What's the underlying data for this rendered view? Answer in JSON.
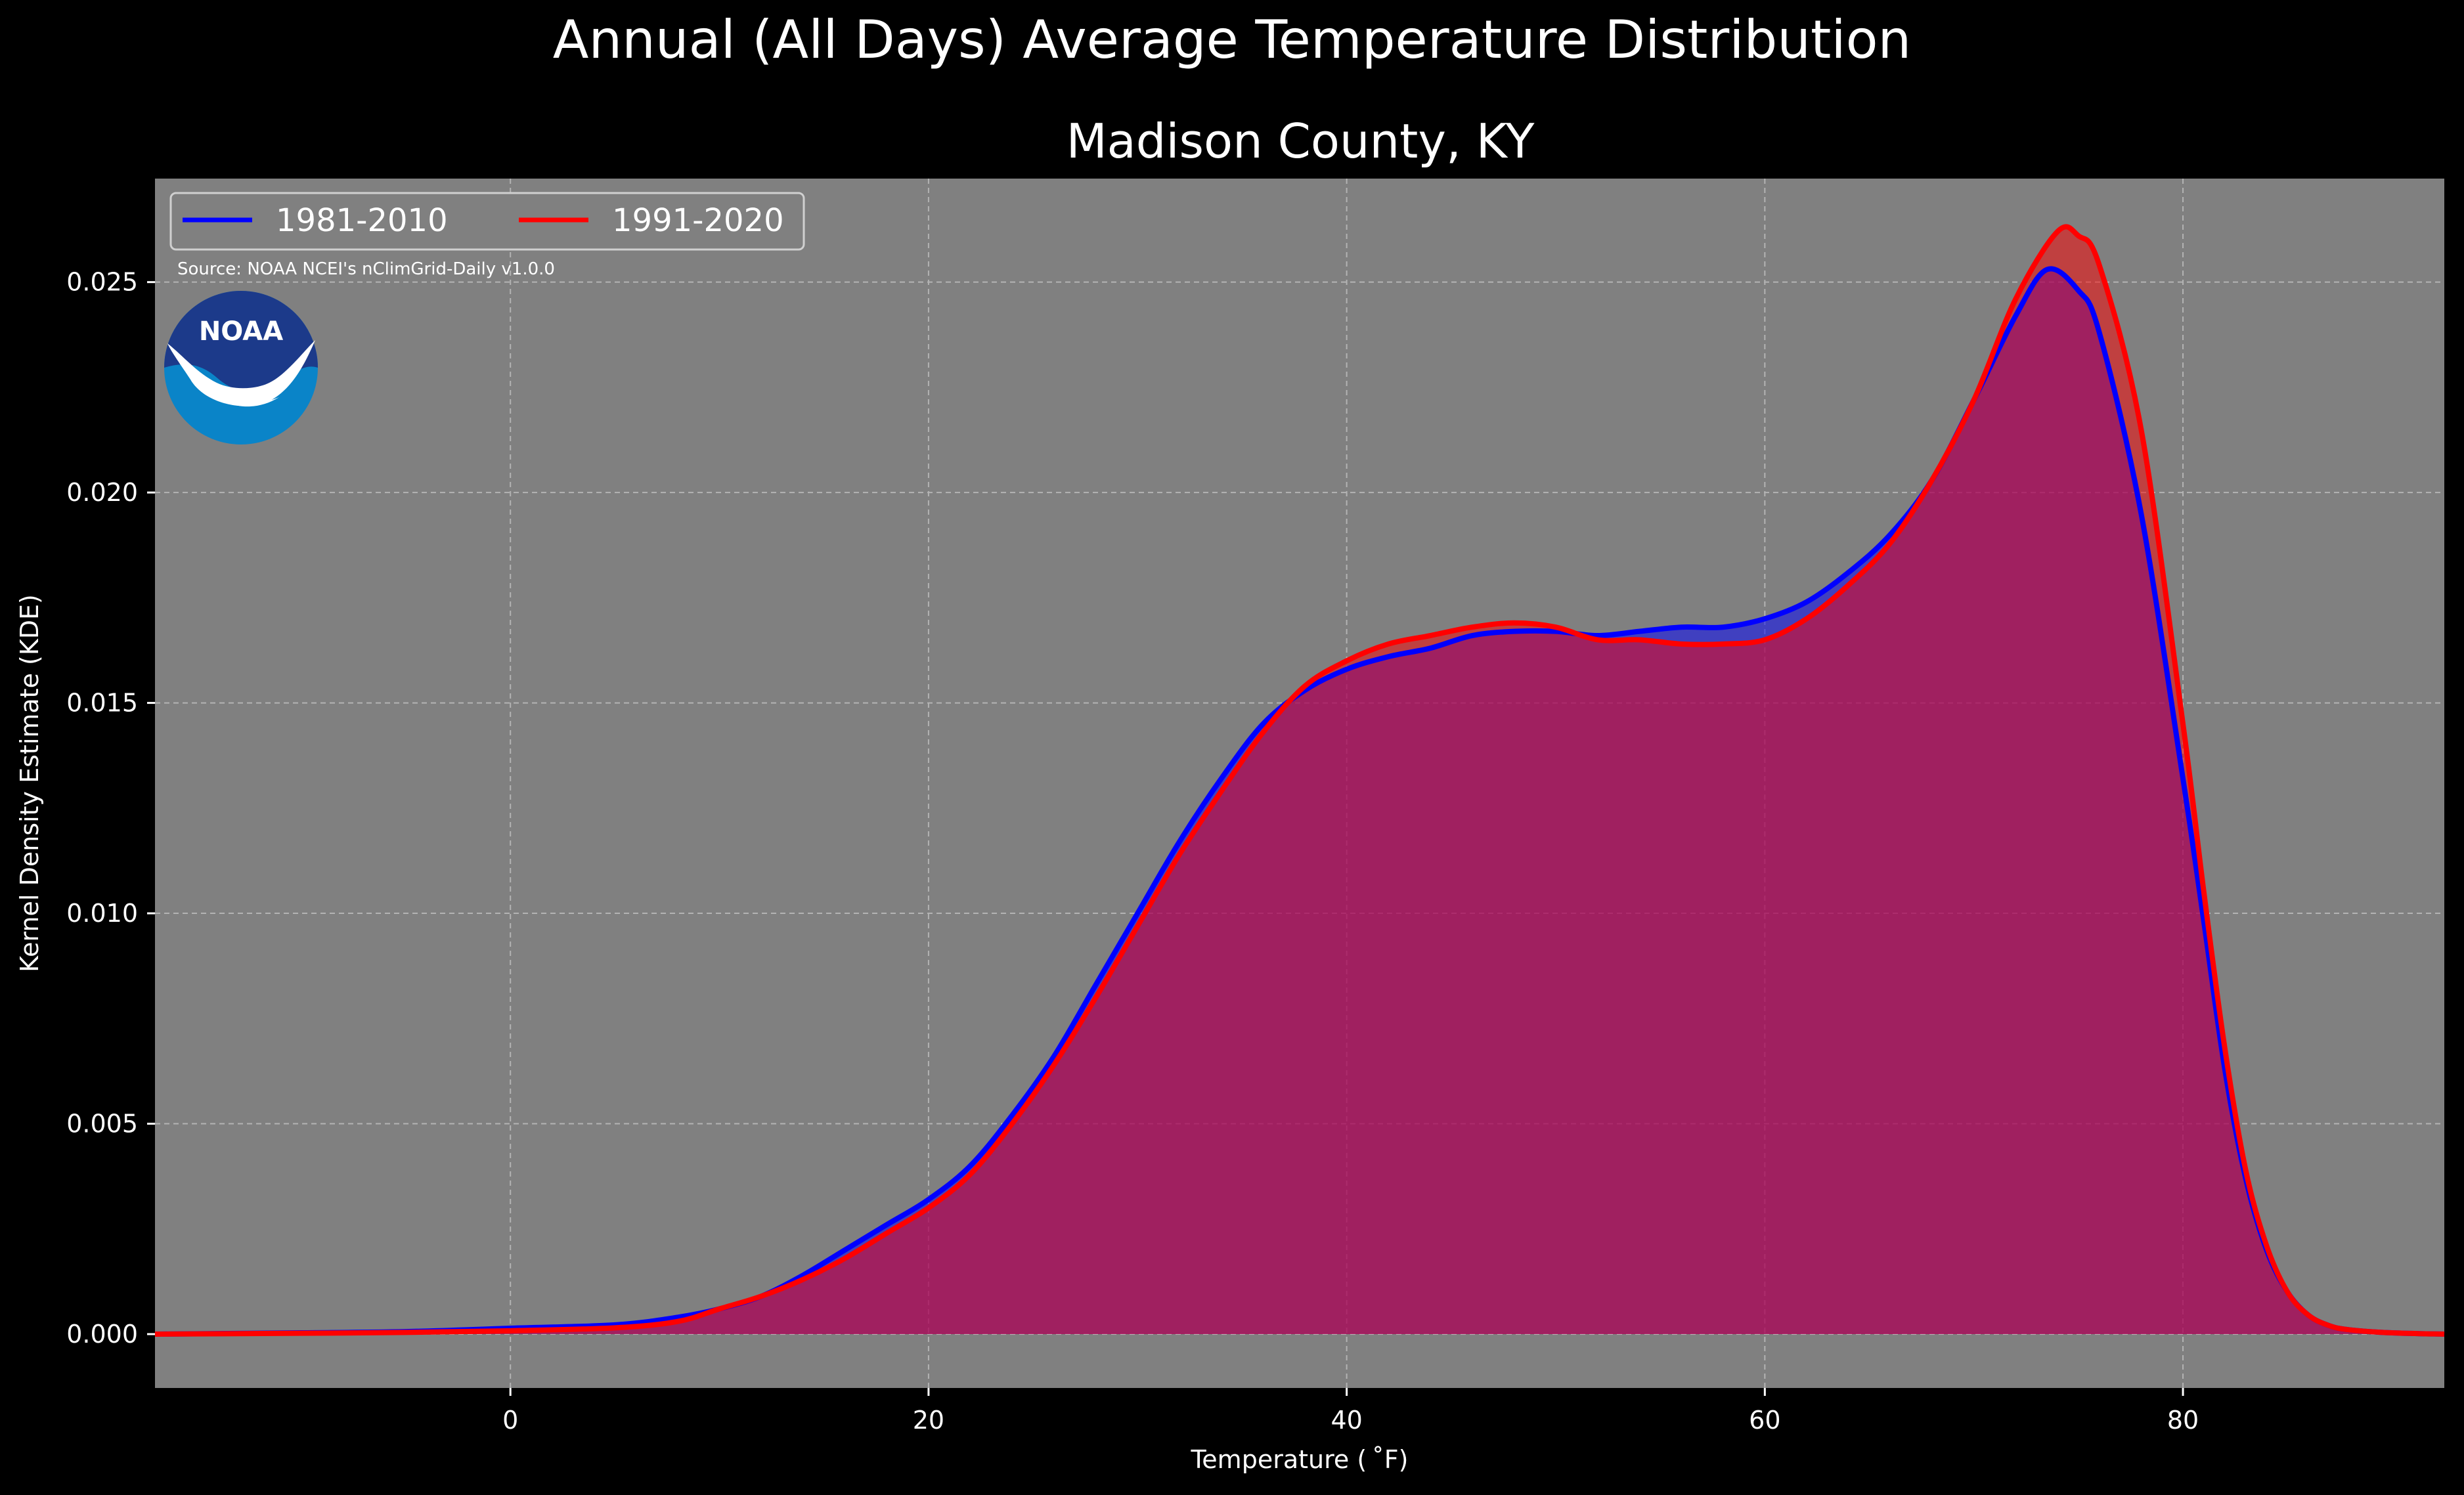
{
  "chart_data": {
    "type": "area",
    "suptitle": "Annual (All Days) Average Temperature Distribution",
    "title": "Madison County, KY",
    "xlabel": "Temperature ( ˚F)",
    "ylabel": "Kernel Density Estimate (KDE)",
    "xlim": [
      -17,
      92.5
    ],
    "ylim": [
      -0.00128,
      0.02746
    ],
    "xticks": [
      0,
      20,
      40,
      60,
      80
    ],
    "yticks": [
      0.0,
      0.005,
      0.01,
      0.015,
      0.02,
      0.025
    ],
    "ytick_labels": [
      "0.000",
      "0.005",
      "0.010",
      "0.015",
      "0.020",
      "0.025"
    ],
    "grid": true,
    "legend": {
      "placement": "top-left",
      "columns": 2
    },
    "source_note": "Source: NOAA NCEI's nClimGrid-Daily v1.0.0",
    "logo_text": "NOAA",
    "colors": {
      "figure_bg": "#000000",
      "axes_bg": "#808080",
      "grid": "#b3b3b3",
      "text": "#ffffff"
    },
    "series": [
      {
        "name": "1981-2010",
        "color": "#0000ff",
        "fill": "rgba(0,0,255,0.5)",
        "points": [
          [
            -17,
            0.0
          ],
          [
            -10,
            3e-05
          ],
          [
            -5,
            6e-05
          ],
          [
            0,
            0.00014
          ],
          [
            5,
            0.00022
          ],
          [
            8,
            0.0004
          ],
          [
            10,
            0.0006
          ],
          [
            12,
            0.0009
          ],
          [
            14,
            0.0014
          ],
          [
            16,
            0.002
          ],
          [
            18,
            0.0026
          ],
          [
            20,
            0.0032
          ],
          [
            22,
            0.004
          ],
          [
            24,
            0.0052
          ],
          [
            26,
            0.0066
          ],
          [
            28,
            0.0083
          ],
          [
            30,
            0.01
          ],
          [
            32,
            0.0117
          ],
          [
            34,
            0.0132
          ],
          [
            36,
            0.0145
          ],
          [
            38,
            0.0153
          ],
          [
            40,
            0.0158
          ],
          [
            42,
            0.0161
          ],
          [
            44,
            0.0163
          ],
          [
            46,
            0.0166
          ],
          [
            48,
            0.0167
          ],
          [
            50,
            0.0167
          ],
          [
            52,
            0.0166
          ],
          [
            54,
            0.0167
          ],
          [
            56,
            0.0168
          ],
          [
            58,
            0.0168
          ],
          [
            60,
            0.017
          ],
          [
            62,
            0.0174
          ],
          [
            64,
            0.0181
          ],
          [
            66,
            0.019
          ],
          [
            68,
            0.0203
          ],
          [
            70,
            0.0222
          ],
          [
            72,
            0.0242
          ],
          [
            73.5,
            0.0253
          ],
          [
            75,
            0.0248
          ],
          [
            76,
            0.0238
          ],
          [
            78,
            0.0195
          ],
          [
            80,
            0.0132
          ],
          [
            81,
            0.0098
          ],
          [
            82,
            0.0063
          ],
          [
            83,
            0.0037
          ],
          [
            84,
            0.002
          ],
          [
            85,
            0.001
          ],
          [
            86,
            0.00045
          ],
          [
            87,
            0.0002
          ],
          [
            88,
            0.0001
          ],
          [
            90,
            3e-05
          ],
          [
            92.5,
            0.0
          ]
        ]
      },
      {
        "name": "1991-2020",
        "color": "#ff0000",
        "fill": "rgba(255,0,0,0.5)",
        "points": [
          [
            -17,
            0.0
          ],
          [
            -10,
            2e-05
          ],
          [
            -5,
            4e-05
          ],
          [
            0,
            8e-05
          ],
          [
            5,
            0.00015
          ],
          [
            8,
            0.0003
          ],
          [
            10,
            0.0006
          ],
          [
            12,
            0.0009
          ],
          [
            14,
            0.0013
          ],
          [
            16,
            0.0018
          ],
          [
            18,
            0.0024
          ],
          [
            20,
            0.003
          ],
          [
            22,
            0.0038
          ],
          [
            24,
            0.005
          ],
          [
            26,
            0.0064
          ],
          [
            28,
            0.008
          ],
          [
            30,
            0.0097
          ],
          [
            32,
            0.0114
          ],
          [
            34,
            0.0129
          ],
          [
            36,
            0.0143
          ],
          [
            38,
            0.0154
          ],
          [
            40,
            0.016
          ],
          [
            42,
            0.0164
          ],
          [
            44,
            0.0166
          ],
          [
            46,
            0.0168
          ],
          [
            48,
            0.0169
          ],
          [
            50,
            0.0168
          ],
          [
            52,
            0.0165
          ],
          [
            54,
            0.0165
          ],
          [
            56,
            0.0164
          ],
          [
            58,
            0.0164
          ],
          [
            60,
            0.0165
          ],
          [
            62,
            0.017
          ],
          [
            64,
            0.0178
          ],
          [
            66,
            0.0188
          ],
          [
            68,
            0.0203
          ],
          [
            70,
            0.0222
          ],
          [
            72,
            0.0246
          ],
          [
            74,
            0.0262
          ],
          [
            75,
            0.0261
          ],
          [
            76,
            0.0254
          ],
          [
            78,
            0.0215
          ],
          [
            80,
            0.0145
          ],
          [
            81,
            0.0105
          ],
          [
            82,
            0.0068
          ],
          [
            83,
            0.0039
          ],
          [
            84,
            0.0021
          ],
          [
            85,
            0.001
          ],
          [
            86,
            0.00045
          ],
          [
            87,
            0.0002
          ],
          [
            88,
            0.0001
          ],
          [
            90,
            3e-05
          ],
          [
            92.5,
            0.0
          ]
        ]
      }
    ]
  }
}
